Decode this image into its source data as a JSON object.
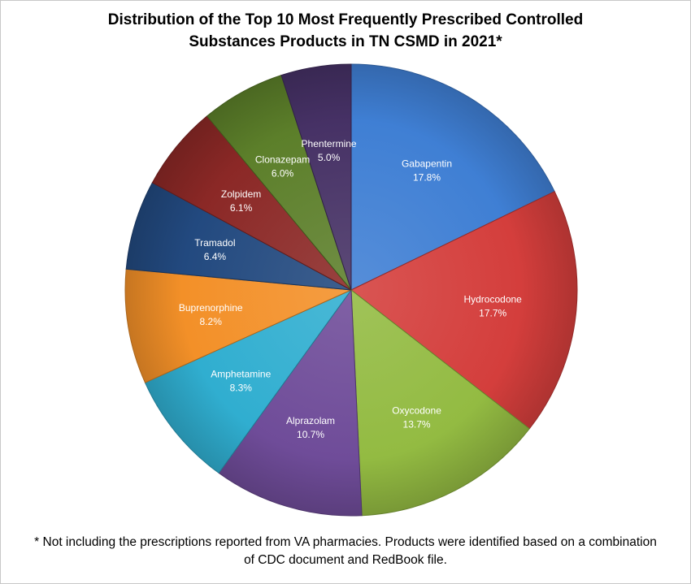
{
  "chart_data": {
    "type": "pie",
    "title_lines": [
      "Distribution of the Top 10 Most Frequently Prescribed Controlled",
      "Substances Products in TN CSMD in 2021*"
    ],
    "slices": [
      {
        "label": "Gabapentin",
        "value": 17.8,
        "value_label": "17.8%",
        "color": "#3f7fd4"
      },
      {
        "label": "Hydrocodone",
        "value": 17.7,
        "value_label": "17.7%",
        "color": "#d43e3c"
      },
      {
        "label": "Oxycodone",
        "value": 13.7,
        "value_label": "13.7%",
        "color": "#93bb42"
      },
      {
        "label": "Alprazolam",
        "value": 10.7,
        "value_label": "10.7%",
        "color": "#6f4c99"
      },
      {
        "label": "Amphetamine",
        "value": 8.3,
        "value_label": "8.3%",
        "color": "#30aed0"
      },
      {
        "label": "Buprenorphine",
        "value": 8.2,
        "value_label": "8.2%",
        "color": "#f39028"
      },
      {
        "label": "Tramadol",
        "value": 6.4,
        "value_label": "6.4%",
        "color": "#22497f"
      },
      {
        "label": "Zolpidem",
        "value": 6.1,
        "value_label": "6.1%",
        "color": "#8b2826"
      },
      {
        "label": "Clonazepam",
        "value": 6.0,
        "value_label": "6.0%",
        "color": "#5c7f2a"
      },
      {
        "label": "Phentermine",
        "value": 5.0,
        "value_label": "5.0%",
        "color": "#463165"
      }
    ],
    "start_angle_deg": 0,
    "direction": "clockwise"
  },
  "footnote_lines": [
    "* Not including the prescriptions reported from VA pharmacies. Products were identified based on a  combination",
    "of CDC document and RedBook file."
  ]
}
